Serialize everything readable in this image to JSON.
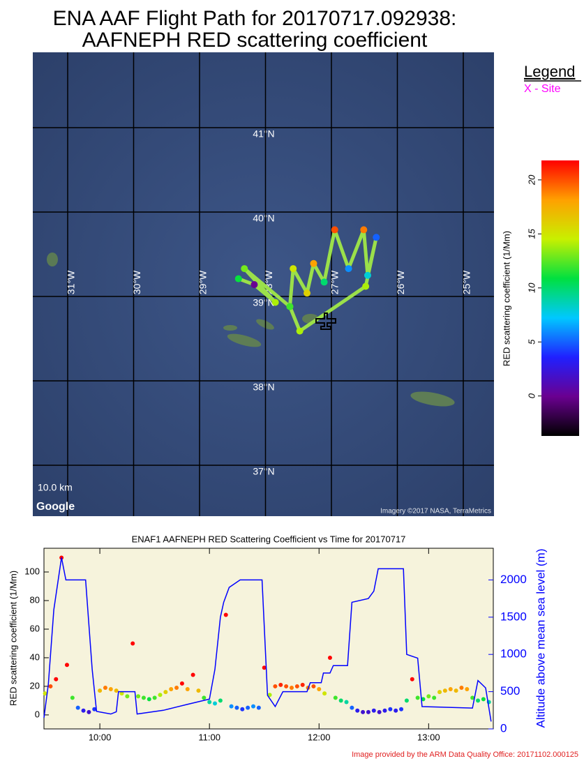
{
  "title": [
    "ENA AAF Flight Path for 20170717.092938:",
    "AAFNEPH RED scattering coefficient"
  ],
  "map": {
    "lat_labels": [
      {
        "value": 41,
        "label": "41°N"
      },
      {
        "value": 40,
        "label": "40°N"
      },
      {
        "value": 39,
        "label": "39°N"
      },
      {
        "value": 38,
        "label": "38°N"
      },
      {
        "value": 37,
        "label": "37°N"
      }
    ],
    "lon_labels": [
      {
        "value": -31,
        "label": "31°W"
      },
      {
        "value": -30,
        "label": "30°W"
      },
      {
        "value": -29,
        "label": "29°W"
      },
      {
        "value": -28,
        "label": "28°W"
      },
      {
        "value": -27,
        "label": "27°W"
      },
      {
        "value": -26,
        "label": "26°W"
      },
      {
        "value": -25,
        "label": "25°W"
      }
    ],
    "scale_label": "10.0 km",
    "logo": "Google",
    "attribution": "Imagery ©2017 NASA, TerraMetrics",
    "site": {
      "lon": -27.085,
      "lat": 38.694
    },
    "flight_path": {
      "lon": [
        -28.41,
        -28.17,
        -27.85,
        -28.32,
        -27.63,
        -27.58,
        -27.37,
        -27.27,
        -27.11,
        -26.95,
        -26.74,
        -26.51,
        -26.45,
        -26.32,
        -26.48,
        -27.48,
        -27.63
      ],
      "lat": [
        39.21,
        39.14,
        38.93,
        39.33,
        38.88,
        39.33,
        39.04,
        39.39,
        39.17,
        39.79,
        39.33,
        39.79,
        39.25,
        39.7,
        39.12,
        38.59,
        38.88
      ],
      "values": [
        11,
        0,
        14,
        13,
        12,
        15,
        16,
        18,
        10,
        20,
        6,
        19,
        8,
        5,
        14,
        14,
        12
      ]
    }
  },
  "legend": {
    "title": "Legend",
    "site": "X - Site"
  },
  "colorbar": {
    "label": "RED scattering coefficient  (1/Mm)",
    "clim": [
      -3.7,
      21.8
    ],
    "ticks": [
      0,
      5,
      10,
      15,
      20
    ],
    "colors": [
      "#000000",
      "#6a0090",
      "#2020ff",
      "#00c8ff",
      "#00e040",
      "#c8f000",
      "#ffa000",
      "#ff0000"
    ]
  },
  "chart_data": {
    "type": "line",
    "title": "ENAF1 AAFNEPH RED Scattering Coefficient vs Time for 20170717",
    "y_label": "RED scattering coefficient (1/Mm)",
    "y2_label": "Altitude above mean sea level (m)",
    "xlim": [
      9.49,
      13.59
    ],
    "xticks": [
      {
        "value": 10,
        "label": "10:00"
      },
      {
        "value": 11,
        "label": "11:00"
      },
      {
        "value": 12,
        "label": "12:00"
      },
      {
        "value": 13,
        "label": "13:00"
      }
    ],
    "ylim": [
      -9.8,
      116.6
    ],
    "yticks": [
      0,
      20,
      40,
      60,
      80,
      100
    ],
    "y2lim": [
      0,
      2425
    ],
    "y2ticks": [
      0,
      500,
      1000,
      1500,
      2000
    ],
    "background": "#f6f3dc",
    "series": [
      {
        "colormap": "colorbar",
        "x": [
          9.5,
          9.55,
          9.6,
          9.65,
          9.7,
          9.75,
          9.8,
          9.85,
          9.9,
          9.95,
          10.0,
          10.05,
          10.1,
          10.15,
          10.2,
          10.25,
          10.3,
          10.35,
          10.4,
          10.45,
          10.5,
          10.55,
          10.6,
          10.65,
          10.7,
          10.75,
          10.8,
          10.85,
          10.9,
          10.95,
          11.0,
          11.05,
          11.1,
          11.15,
          11.2,
          11.25,
          11.3,
          11.35,
          11.4,
          11.45,
          11.5,
          11.55,
          11.6,
          11.65,
          11.7,
          11.75,
          11.8,
          11.85,
          11.9,
          11.95,
          12.0,
          12.05,
          12.1,
          12.15,
          12.2,
          12.25,
          12.3,
          12.35,
          12.4,
          12.45,
          12.5,
          12.55,
          12.6,
          12.65,
          12.7,
          12.75,
          12.8,
          12.85,
          12.9,
          12.95,
          13.0,
          13.05,
          13.1,
          13.15,
          13.2,
          13.25,
          13.3,
          13.35,
          13.4,
          13.45,
          13.5,
          13.55
        ],
        "values": [
          15,
          20,
          25,
          110,
          35,
          12,
          5,
          3,
          2,
          4,
          17,
          19,
          18,
          17,
          15,
          13,
          50,
          13,
          12,
          11,
          12,
          14,
          16,
          18,
          19,
          22,
          18,
          28,
          17,
          12,
          9,
          8,
          10,
          70,
          6,
          5,
          4,
          5,
          6,
          5,
          33,
          14,
          20,
          21,
          20,
          19,
          20,
          21,
          19,
          20,
          18,
          15,
          40,
          12,
          10,
          9,
          5,
          3,
          2,
          2,
          3,
          2,
          3,
          4,
          3,
          4,
          10,
          25,
          12,
          11,
          13,
          12,
          16,
          17,
          18,
          17,
          19,
          18,
          12,
          10,
          11,
          9
        ]
      },
      {
        "axis": "y2",
        "color": "#0000ff",
        "x": [
          9.49,
          9.53,
          9.58,
          9.65,
          9.69,
          9.87,
          9.93,
          9.97,
          10.1,
          10.15,
          10.17,
          10.32,
          10.34,
          10.58,
          10.8,
          11.0,
          11.05,
          11.1,
          11.13,
          11.18,
          11.28,
          11.48,
          11.53,
          11.6,
          11.67,
          11.89,
          11.92,
          12.02,
          12.04,
          12.1,
          12.13,
          12.26,
          12.3,
          12.45,
          12.5,
          12.54,
          12.77,
          12.8,
          12.9,
          12.94,
          13.4,
          13.45,
          13.52,
          13.57
        ],
        "values": [
          150,
          600,
          1600,
          2300,
          2000,
          2000,
          800,
          235,
          200,
          230,
          500,
          500,
          200,
          250,
          330,
          400,
          800,
          1500,
          1700,
          1900,
          2000,
          2000,
          450,
          300,
          500,
          500,
          620,
          620,
          750,
          750,
          850,
          850,
          1700,
          1750,
          1850,
          2150,
          2150,
          1000,
          950,
          300,
          280,
          650,
          550,
          100
        ]
      }
    ]
  },
  "footer": "Image provided by the ARM Data Quality Office: 20171102.000125"
}
